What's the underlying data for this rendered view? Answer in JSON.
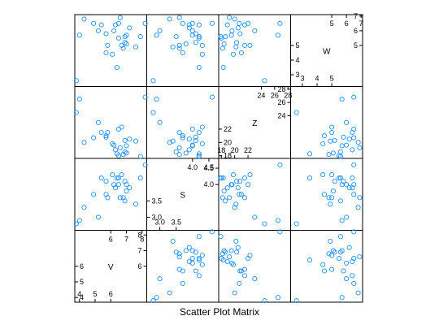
{
  "chart_data": {
    "type": "scatter",
    "title": "Scatter Plot Matrix",
    "variables": [
      "V",
      "S",
      "Z",
      "W"
    ],
    "point_color": "#1E90FF",
    "point_shape": "open-circle",
    "ranges": {
      "V": [
        3.7,
        8.3
      ],
      "S": [
        2.6,
        4.8
      ],
      "Z": [
        17.6,
        28.4
      ],
      "W": [
        2.2,
        7.1
      ]
    },
    "diagonal_ticks": {
      "V": {
        "low": [
          4,
          5,
          6
        ],
        "high": [
          6,
          7,
          8
        ]
      },
      "S": {
        "low": [
          3.0,
          3.5
        ],
        "high": [
          4.0,
          4.5
        ]
      },
      "Z": {
        "low": [
          18,
          20,
          22
        ],
        "high": [
          24,
          26,
          28
        ]
      },
      "W": {
        "low": [
          3,
          4,
          5
        ],
        "high": [
          5,
          6,
          7
        ]
      }
    },
    "grid": false,
    "legend": "none",
    "observations": [
      {
        "V": 3.8,
        "S": 2.8,
        "Z": 24.5,
        "W": 2.6
      },
      {
        "V": 4.0,
        "S": 2.9,
        "Z": 26.5,
        "W": 5.7
      },
      {
        "V": 4.3,
        "S": 3.3,
        "Z": 20.0,
        "W": 6.8
      },
      {
        "V": 4.9,
        "S": 3.7,
        "Z": 20.7,
        "W": 6.5
      },
      {
        "V": 5.2,
        "S": 3.0,
        "Z": 23.0,
        "W": 6.0
      },
      {
        "V": 5.4,
        "S": 4.2,
        "Z": 21.5,
        "W": 6.4
      },
      {
        "V": 5.7,
        "S": 4.1,
        "Z": 20.8,
        "W": 5.8
      },
      {
        "V": 5.7,
        "S": 3.7,
        "Z": 21.0,
        "W": 4.5
      },
      {
        "V": 5.8,
        "S": 3.6,
        "Z": 21.5,
        "W": 5.0
      },
      {
        "V": 6.1,
        "S": 4.3,
        "Z": 19.8,
        "W": 4.4
      },
      {
        "V": 6.2,
        "S": 4.0,
        "Z": 19.6,
        "W": 6.0
      },
      {
        "V": 6.3,
        "S": 3.9,
        "Z": 18.9,
        "W": 6.4
      },
      {
        "V": 6.4,
        "S": 4.2,
        "Z": 18.3,
        "W": 3.5
      },
      {
        "V": 6.5,
        "S": 4.0,
        "Z": 22.0,
        "W": 6.5
      },
      {
        "V": 6.5,
        "S": 4.2,
        "Z": 18.0,
        "W": 5.5
      },
      {
        "V": 6.6,
        "S": 3.6,
        "Z": 19.2,
        "W": 6.9
      },
      {
        "V": 6.7,
        "S": 4.3,
        "Z": 22.3,
        "W": 5.0
      },
      {
        "V": 6.8,
        "S": 3.6,
        "Z": 18.2,
        "W": 4.8
      },
      {
        "V": 6.9,
        "S": 4.1,
        "Z": 20.3,
        "W": 5.2
      },
      {
        "V": 6.9,
        "S": 3.5,
        "Z": 18.6,
        "W": 5.6
      },
      {
        "V": 7.0,
        "S": 4.0,
        "Z": 19.5,
        "W": 5.7
      },
      {
        "V": 7.0,
        "S": 3.8,
        "Z": 18.4,
        "W": 5.1
      },
      {
        "V": 7.2,
        "S": 3.9,
        "Z": 20.5,
        "W": 6.2
      },
      {
        "V": 7.6,
        "S": 3.4,
        "Z": 20.2,
        "W": 4.9
      },
      {
        "V": 7.9,
        "S": 4.2,
        "Z": 17.9,
        "W": 5.6
      },
      {
        "V": 8.2,
        "S": 4.6,
        "Z": 26.8,
        "W": 6.5
      }
    ]
  }
}
